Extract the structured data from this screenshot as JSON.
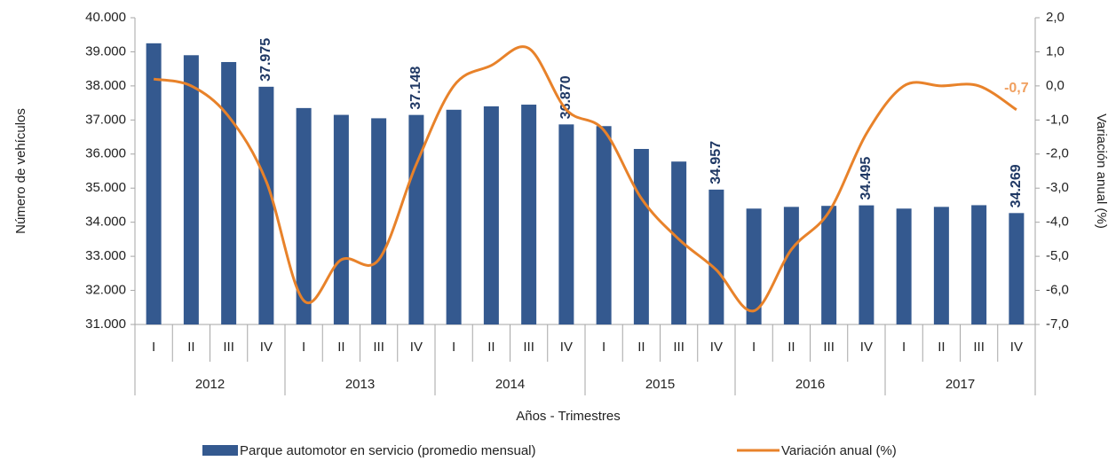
{
  "chart_data": {
    "type": "bar",
    "x_label": "Años - Trimestres",
    "y_label": "Número de vehículos",
    "y2_label": "Variación anual (%)",
    "categories": [
      "I",
      "II",
      "III",
      "IV",
      "I",
      "II",
      "III",
      "IV",
      "I",
      "II",
      "III",
      "IV",
      "I",
      "II",
      "III",
      "IV",
      "I",
      "II",
      "III",
      "IV",
      "I",
      "II",
      "III",
      "IV"
    ],
    "groups": [
      "2012",
      "2013",
      "2014",
      "2015",
      "2016",
      "2017"
    ],
    "series": [
      {
        "name": "Parque automotor en servicio (promedio mensual)",
        "type": "bar",
        "color": "#34598f",
        "values": [
          39250,
          38900,
          38700,
          37975,
          37350,
          37150,
          37050,
          37148,
          37300,
          37400,
          37450,
          36870,
          36820,
          36150,
          35780,
          34957,
          34400,
          34450,
          34480,
          34495,
          34400,
          34450,
          34500,
          34269
        ],
        "value_labels": [
          null,
          null,
          null,
          "37.975",
          null,
          null,
          null,
          "37.148",
          null,
          null,
          null,
          "36.870",
          null,
          null,
          null,
          "34.957",
          null,
          null,
          null,
          "34.495",
          null,
          null,
          null,
          "34.269"
        ],
        "label_color": "#1f3864"
      },
      {
        "name": "Variación anual (%)",
        "type": "line",
        "axis": "y2",
        "color": "#e8822a",
        "values": [
          0.2,
          0.0,
          -0.9,
          -2.8,
          -6.3,
          -5.1,
          -5.1,
          -2.3,
          0.0,
          0.6,
          1.1,
          -0.7,
          -1.3,
          -3.3,
          -4.5,
          -5.4,
          -6.6,
          -4.8,
          -3.7,
          -1.4,
          0.0,
          0.0,
          0.0,
          -0.7
        ],
        "value_labels": [
          null,
          null,
          null,
          null,
          null,
          null,
          null,
          null,
          null,
          null,
          null,
          null,
          null,
          null,
          null,
          null,
          null,
          null,
          null,
          null,
          null,
          null,
          null,
          "-0,7"
        ],
        "label_color": "#f0a060"
      }
    ],
    "ylim": [
      31000,
      40000
    ],
    "yticks": [
      {
        "value": 31000,
        "label": "31.000"
      },
      {
        "value": 32000,
        "label": "32.000"
      },
      {
        "value": 33000,
        "label": "33.000"
      },
      {
        "value": 34000,
        "label": "34.000"
      },
      {
        "value": 35000,
        "label": "35.000"
      },
      {
        "value": 36000,
        "label": "36.000"
      },
      {
        "value": 37000,
        "label": "37.000"
      },
      {
        "value": 38000,
        "label": "38.000"
      },
      {
        "value": 39000,
        "label": "39.000"
      },
      {
        "value": 40000,
        "label": "40.000"
      }
    ],
    "y2lim": [
      -7,
      2
    ],
    "y2ticks": [
      {
        "value": -7,
        "label": "-7,0"
      },
      {
        "value": -6,
        "label": "-6,0"
      },
      {
        "value": -5,
        "label": "-5,0"
      },
      {
        "value": -4,
        "label": "-4,0"
      },
      {
        "value": -3,
        "label": "-3,0"
      },
      {
        "value": -2,
        "label": "-2,0"
      },
      {
        "value": -1,
        "label": "-1,0"
      },
      {
        "value": 0,
        "label": "0,0"
      },
      {
        "value": 1,
        "label": "1,0"
      },
      {
        "value": 2,
        "label": "2,0"
      }
    ],
    "legend": "bottom"
  }
}
